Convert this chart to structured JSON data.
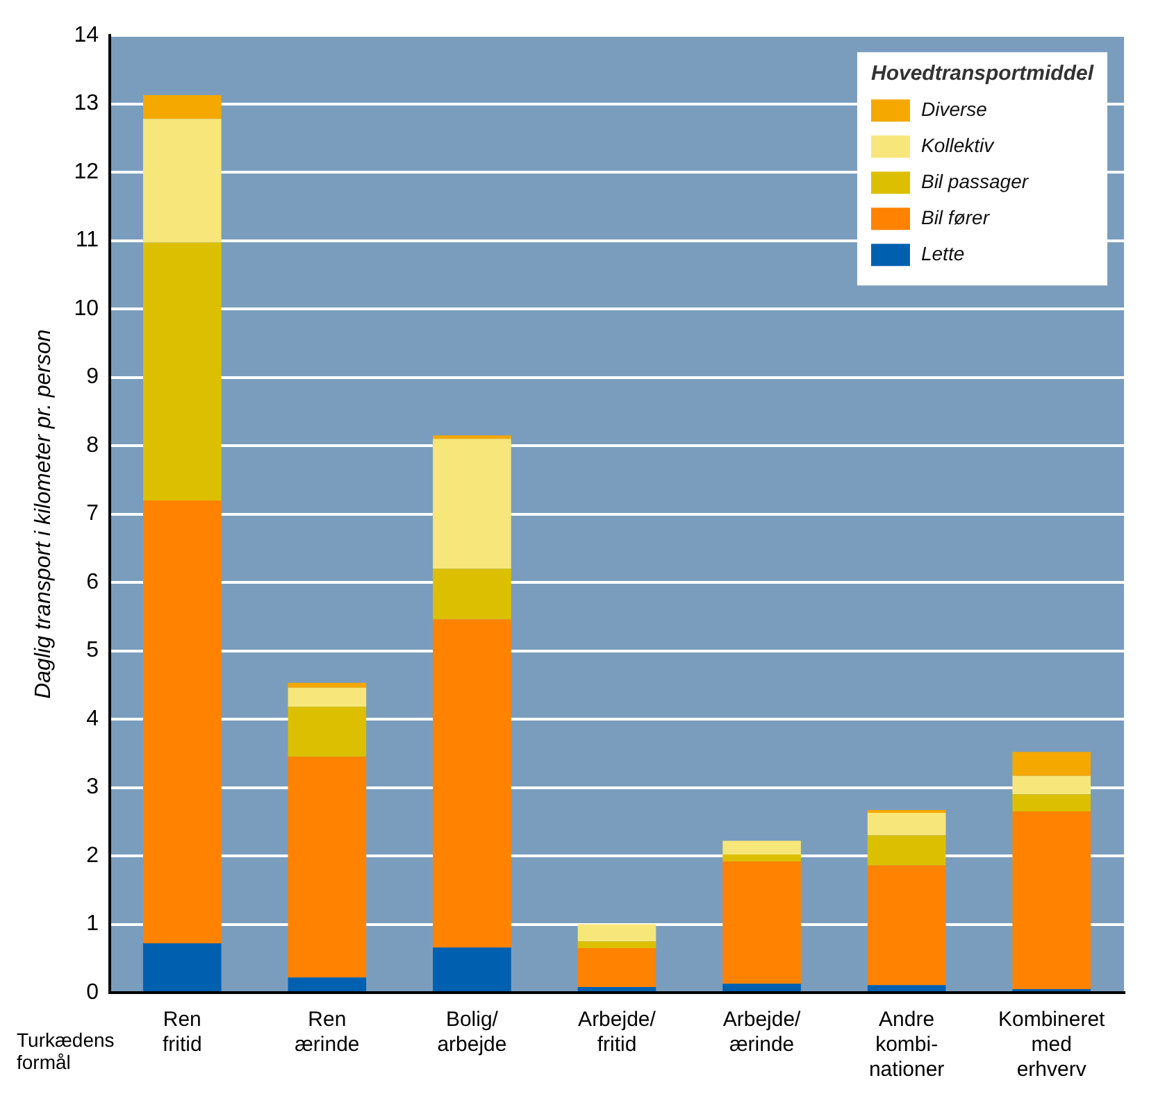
{
  "chart_data": {
    "type": "bar",
    "stacked": true,
    "ylabel": "Daglig transport i kilometer pr. person",
    "xlabel": "Turkædens\nformål",
    "legend_title": "Hovedtransportmiddel",
    "legend": "top right",
    "grid": "y",
    "categories": [
      "Ren\nfritid",
      "Ren\nærinde",
      "Bolig/\narbejde",
      "Arbejde/\nfritid",
      "Arbejde/\nærinde",
      "Andre\nkombi-\nnationer",
      "Kombineret\nmed\nerhverv"
    ],
    "ylim": [
      0,
      14
    ],
    "yticks": [
      0,
      1,
      2,
      3,
      4,
      5,
      6,
      7,
      8,
      9,
      10,
      11,
      12,
      13,
      14
    ],
    "series": [
      {
        "name": "Lette",
        "color": "#0060b0",
        "values": [
          0.72,
          0.22,
          0.66,
          0.08,
          0.13,
          0.11,
          0.05
        ]
      },
      {
        "name": "Bil fører",
        "color": "#ff8200",
        "values": [
          6.48,
          3.23,
          4.8,
          0.57,
          1.79,
          1.75,
          2.6
        ]
      },
      {
        "name": "Bil passager",
        "color": "#dcc000",
        "values": [
          3.77,
          0.73,
          0.74,
          0.1,
          0.1,
          0.44,
          0.25
        ]
      },
      {
        "name": "Kollektiv",
        "color": "#f7e67a",
        "values": [
          1.81,
          0.28,
          1.9,
          0.25,
          0.2,
          0.33,
          0.27
        ]
      },
      {
        "name": "Diverse",
        "color": "#f5a800",
        "values": [
          0.35,
          0.07,
          0.05,
          null,
          null,
          0.04,
          0.35
        ]
      }
    ]
  }
}
